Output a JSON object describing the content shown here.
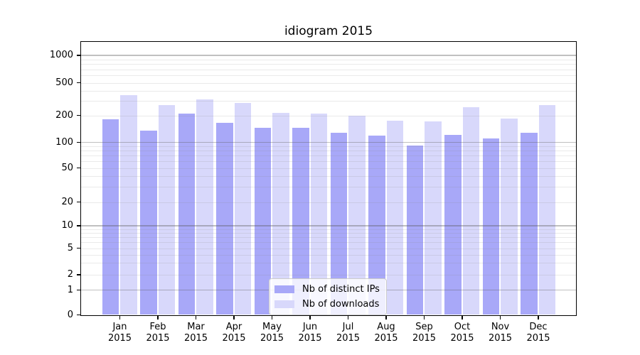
{
  "title": "idiogram 2015",
  "legend": {
    "items": [
      {
        "label": "Nb of distinct IPs",
        "color": "#a8a8f8"
      },
      {
        "label": "Nb of downloads",
        "color": "#d8d8fb"
      }
    ],
    "position": "lower center"
  },
  "axes": {
    "y_tick_labels": [
      "1000",
      "500",
      "200",
      "100",
      "50",
      "20",
      "10",
      "5",
      "2",
      "1",
      "0"
    ],
    "x_month_labels": [
      "Jan",
      "Feb",
      "Mar",
      "Apr",
      "May",
      "Jun",
      "Jul",
      "Aug",
      "Sep",
      "Oct",
      "Nov",
      "Dec"
    ],
    "x_year_label": "2015"
  },
  "chart_data": {
    "type": "bar",
    "title": "idiogram 2015",
    "categories": [
      "Jan 2015",
      "Feb 2015",
      "Mar 2015",
      "Apr 2015",
      "May 2015",
      "Jun 2015",
      "Jul 2015",
      "Aug 2015",
      "Sep 2015",
      "Oct 2015",
      "Nov 2015",
      "Dec 2015"
    ],
    "series": [
      {
        "name": "Nb of distinct IPs",
        "color": "#a8a8f8",
        "values": [
          180,
          136,
          210,
          166,
          146,
          145,
          129,
          120,
          91,
          122,
          111,
          129
        ]
      },
      {
        "name": "Nb of downloads",
        "color": "#d8d8fb",
        "values": [
          355,
          267,
          310,
          286,
          216,
          210,
          200,
          175,
          170,
          252,
          183,
          267
        ]
      }
    ],
    "xlabel": "",
    "ylabel": "",
    "yscale": "log above 1, linear 0-1",
    "ylim": [
      0,
      1400
    ],
    "yticks": [
      0,
      1,
      2,
      5,
      10,
      20,
      50,
      100,
      200,
      500,
      1000
    ],
    "grid": "horizontal major + minor gridlines drawn over bars",
    "legend_position": "lower center"
  },
  "colors": {
    "bar_dark": "#a8a8f8",
    "bar_light": "#d8d8fb",
    "grid_major": "#b6b6b6",
    "grid_minor": "#e4e4e4",
    "axis": "#000000",
    "legend_border": "#cccccc",
    "background": "#ffffff"
  }
}
